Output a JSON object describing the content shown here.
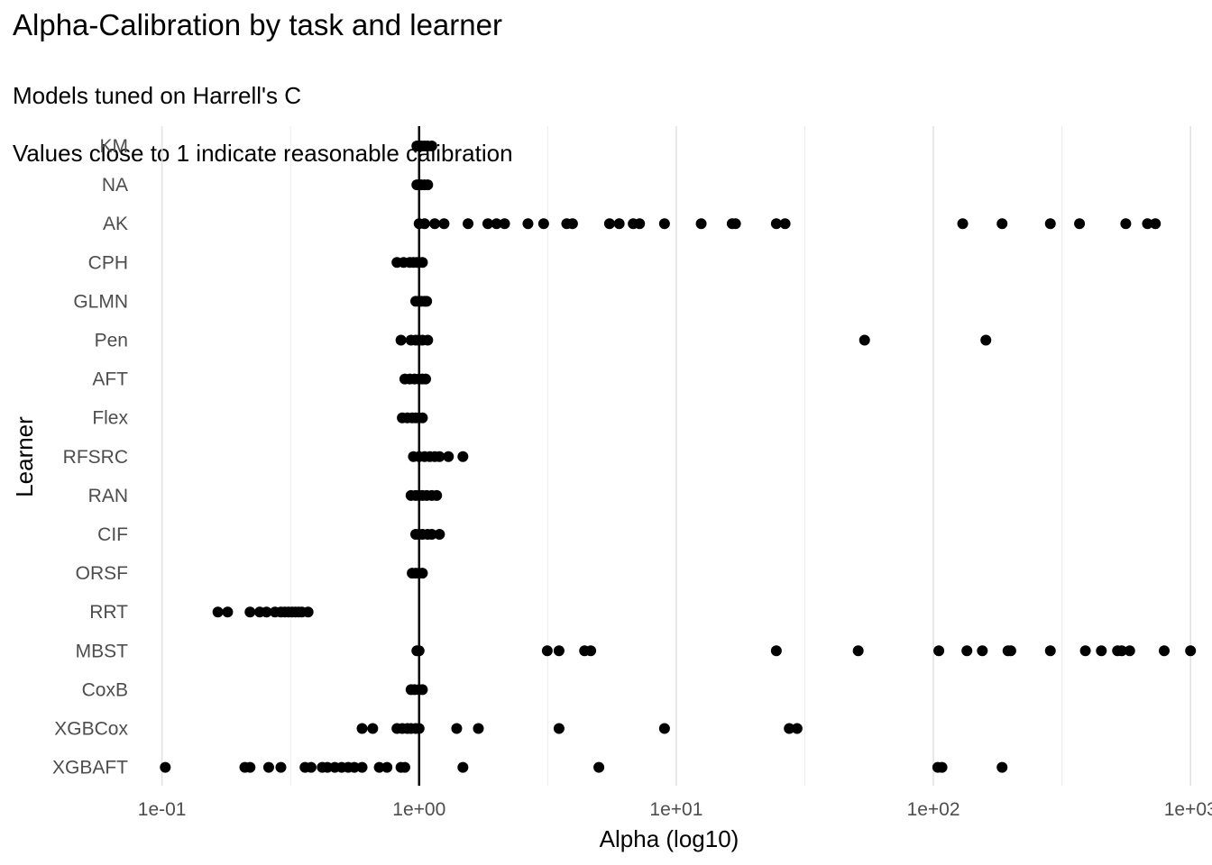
{
  "chart_data": {
    "type": "scatter",
    "title": "Alpha-Calibration by task and learner",
    "subtitle_lines": [
      "Models tuned on Harrell's C",
      "Values close to 1 indicate reasonable calibration"
    ],
    "xlabel": "Alpha (log10)",
    "ylabel": "Learner",
    "x_scale": "log10",
    "xlim": [
      0.08,
      1100
    ],
    "x_ticks": [
      0.1,
      1,
      10,
      100,
      1000
    ],
    "x_tick_labels": [
      "1e-01",
      "1e+00",
      "1e+01",
      "1e+02",
      "1e+03"
    ],
    "reference_line_x": 1,
    "grid": "vertical",
    "point_color": "#000000",
    "categories": [
      "KM",
      "NA",
      "AK",
      "CPH",
      "GLMN",
      "Pen",
      "AFT",
      "Flex",
      "RFSRC",
      "RAN",
      "CIF",
      "ORSF",
      "RRT",
      "MBST",
      "CoxB",
      "XGBCox",
      "XGBAFT"
    ],
    "series": [
      {
        "category": "KM",
        "x": [
          0.98,
          1.0,
          1.02,
          1.05,
          1.08,
          1.12
        ]
      },
      {
        "category": "NA",
        "x": [
          0.98,
          1.0,
          1.02,
          1.05,
          1.08
        ]
      },
      {
        "category": "AK",
        "x": [
          1.0,
          1.05,
          1.15,
          1.25,
          1.55,
          1.85,
          2.0,
          2.15,
          2.65,
          3.05,
          3.75,
          3.95,
          5.5,
          6.0,
          6.8,
          7.2,
          9.0,
          12.5,
          16.5,
          17.0,
          24.5,
          26.5,
          130,
          185,
          285,
          370,
          560,
          680,
          730
        ]
      },
      {
        "category": "CPH",
        "x": [
          0.82,
          0.87,
          0.92,
          0.95,
          0.98,
          1.0,
          1.03
        ]
      },
      {
        "category": "GLMN",
        "x": [
          0.97,
          1.0,
          1.02,
          1.05,
          1.07
        ]
      },
      {
        "category": "Pen",
        "x": [
          0.85,
          0.93,
          0.97,
          1.0,
          1.03,
          1.08,
          54,
          160
        ]
      },
      {
        "category": "AFT",
        "x": [
          0.88,
          0.92,
          0.96,
          1.0,
          1.03,
          1.06
        ]
      },
      {
        "category": "Flex",
        "x": [
          0.86,
          0.9,
          0.94,
          0.97,
          1.0,
          1.03
        ]
      },
      {
        "category": "RFSRC",
        "x": [
          0.95,
          1.0,
          1.05,
          1.1,
          1.15,
          1.2,
          1.3,
          1.48
        ]
      },
      {
        "category": "RAN",
        "x": [
          0.93,
          0.97,
          1.0,
          1.03,
          1.07,
          1.12,
          1.17
        ]
      },
      {
        "category": "CIF",
        "x": [
          0.97,
          1.0,
          1.03,
          1.08,
          1.12,
          1.2
        ]
      },
      {
        "category": "ORSF",
        "x": [
          0.94,
          0.97,
          1.0,
          1.03
        ]
      },
      {
        "category": "RRT",
        "x": [
          0.165,
          0.18,
          0.22,
          0.24,
          0.255,
          0.275,
          0.29,
          0.3,
          0.31,
          0.32,
          0.33,
          0.34,
          0.35,
          0.37
        ]
      },
      {
        "category": "MBST",
        "x": [
          0.98,
          1.0,
          3.15,
          3.5,
          4.4,
          4.65,
          24.5,
          51,
          105,
          135,
          155,
          195,
          200,
          285,
          390,
          450,
          520,
          540,
          580,
          790,
          1000
        ]
      },
      {
        "category": "CoxB",
        "x": [
          0.93,
          0.96,
          1.0,
          1.03
        ]
      },
      {
        "category": "XGBCox",
        "x": [
          0.6,
          0.66,
          0.82,
          0.86,
          0.9,
          0.93,
          0.97,
          1.0,
          1.4,
          1.7,
          3.5,
          9.0,
          27.5,
          29.5
        ]
      },
      {
        "category": "XGBAFT",
        "x": [
          0.103,
          0.21,
          0.22,
          0.26,
          0.29,
          0.36,
          0.38,
          0.42,
          0.44,
          0.47,
          0.5,
          0.53,
          0.56,
          0.6,
          0.7,
          0.75,
          0.85,
          0.88,
          1.48,
          5.0,
          104,
          108,
          185
        ]
      }
    ]
  }
}
